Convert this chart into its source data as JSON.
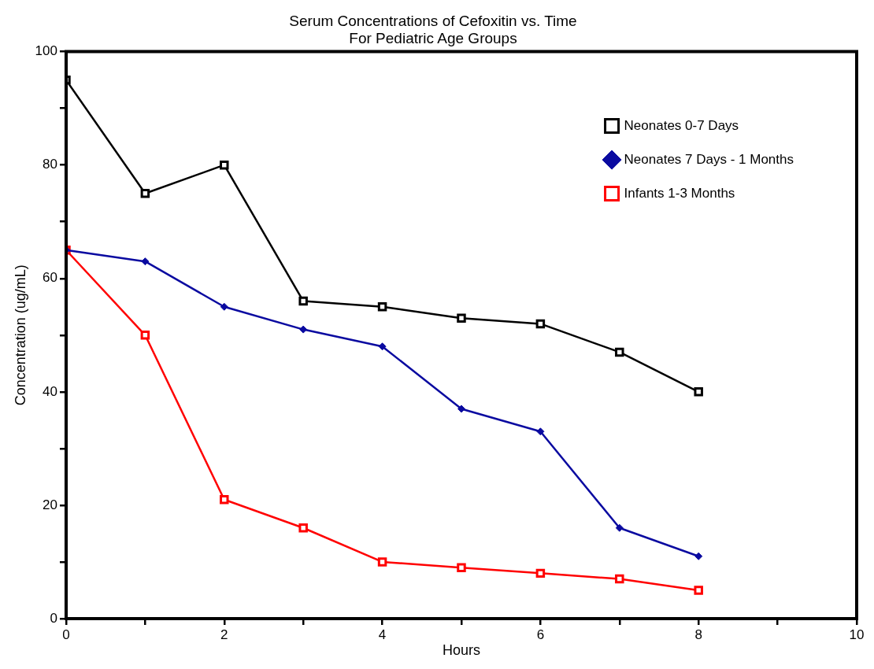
{
  "chart_data": {
    "type": "line",
    "title": "Serum Concentrations of Cefoxitin vs. Time",
    "subtitle": "For Pediatric Age Groups",
    "xlabel": "Hours",
    "ylabel": "Concentration (ug/mL)",
    "x": [
      0,
      1,
      2,
      3,
      4,
      5,
      6,
      7,
      8
    ],
    "series": [
      {
        "name": "Neonates 0-7 Days",
        "color": "#000000",
        "marker": "square",
        "values": [
          95,
          75,
          80,
          56,
          55,
          53,
          52,
          47,
          40
        ]
      },
      {
        "name": "Neonates 7 Days - 1 Months",
        "color": "#0a0aa0",
        "marker": "diamond",
        "values": [
          65,
          63,
          55,
          51,
          48,
          37,
          33,
          16,
          11
        ]
      },
      {
        "name": "Infants 1-3 Months",
        "color": "#ff0000",
        "marker": "square",
        "values": [
          65,
          50,
          21,
          16,
          10,
          9,
          8,
          7,
          5
        ]
      }
    ],
    "xlim": [
      0,
      10
    ],
    "xticks": [
      0,
      {
        "value": 1,
        "label": null
      },
      2,
      {
        "value": 3,
        "label": null
      },
      4,
      {
        "value": 5,
        "label": null
      },
      6,
      {
        "value": 7,
        "label": null
      },
      8,
      {
        "value": 9,
        "label": null
      },
      10
    ],
    "ylim": [
      0,
      100
    ],
    "yticks": [
      0,
      {
        "value": 10,
        "label": null
      },
      20,
      {
        "value": 30,
        "label": null
      },
      40,
      {
        "value": 50,
        "label": null
      },
      60,
      {
        "value": 70,
        "label": null
      },
      80,
      {
        "value": 90,
        "label": null
      },
      100
    ],
    "grid": false,
    "legend": "top right",
    "line_style": "solid"
  }
}
